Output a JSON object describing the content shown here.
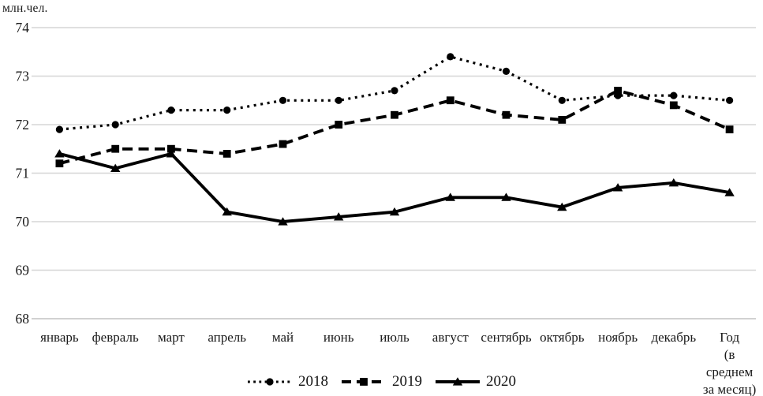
{
  "y_axis_title": "млн.чел.",
  "chart_data": {
    "type": "line",
    "title": "",
    "ylabel": "млн.чел.",
    "xlabel": "",
    "ylim": [
      68,
      74
    ],
    "y_ticks": [
      74,
      73,
      72,
      71,
      70,
      69,
      68
    ],
    "grid": true,
    "legend_position": "bottom",
    "grid_color": "#d6d6d6",
    "axis_color": "#c2c2c2",
    "text_color": "#1a1a1a",
    "series_color": "#000000",
    "categories": [
      "январь",
      "февраль",
      "март",
      "апрель",
      "май",
      "июнь",
      "июль",
      "август",
      "сентябрь",
      "октябрь",
      "ноябрь",
      "декабрь",
      "Год|(в|среднем|за месяц)"
    ],
    "series": [
      {
        "name": "2018",
        "line_style": "dotted",
        "marker": "circle",
        "values": [
          71.9,
          72.0,
          72.3,
          72.3,
          72.5,
          72.5,
          72.7,
          73.4,
          73.1,
          72.5,
          72.6,
          72.6,
          72.5
        ]
      },
      {
        "name": "2019",
        "line_style": "dashed",
        "marker": "square",
        "values": [
          71.2,
          71.5,
          71.5,
          71.4,
          71.6,
          72.0,
          72.2,
          72.5,
          72.2,
          72.1,
          72.7,
          72.4,
          71.9
        ]
      },
      {
        "name": "2020",
        "line_style": "solid",
        "marker": "triangle",
        "values": [
          71.4,
          71.1,
          71.4,
          70.2,
          70.0,
          70.1,
          70.2,
          70.5,
          70.5,
          70.3,
          70.7,
          70.8,
          70.6
        ]
      }
    ]
  }
}
